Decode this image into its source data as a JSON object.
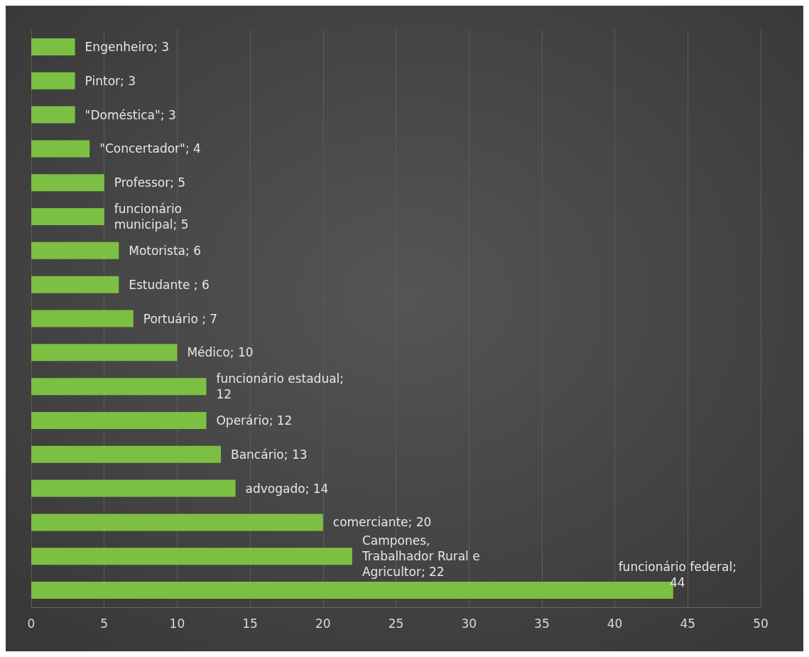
{
  "chart_data": {
    "type": "bar",
    "orientation": "horizontal",
    "categories": [
      null,
      null,
      null,
      null,
      null,
      null,
      null,
      null,
      null,
      null,
      null,
      null,
      null,
      null,
      null,
      null,
      null
    ],
    "values": [
      3,
      3,
      3,
      4,
      5,
      5,
      6,
      6,
      7,
      10,
      12,
      12,
      13,
      14,
      20,
      22,
      44
    ],
    "value_labels": [
      "Engenheiro; 3",
      "Pintor; 3",
      "\"Doméstica\"; 3",
      "\"Concertador\"; 4",
      "Professor; 5",
      "funcionário\nmunicipal; 5",
      "Motorista; 6",
      "Estudante ; 6",
      "Portuário ; 7",
      "Médico; 10",
      "funcionário estadual;\n12",
      "Operário; 12",
      "Bancário; 13",
      "advogado; 14",
      "comerciante; 20",
      "Campones,\nTrabalhador Rural e\nAgricultor; 22",
      "funcionário federal;\n44"
    ],
    "color": "#7cc043",
    "xlim": [
      0,
      50
    ],
    "xticks": [
      0,
      5,
      10,
      15,
      20,
      25,
      30,
      35,
      40,
      45,
      50
    ],
    "grid": "x"
  }
}
